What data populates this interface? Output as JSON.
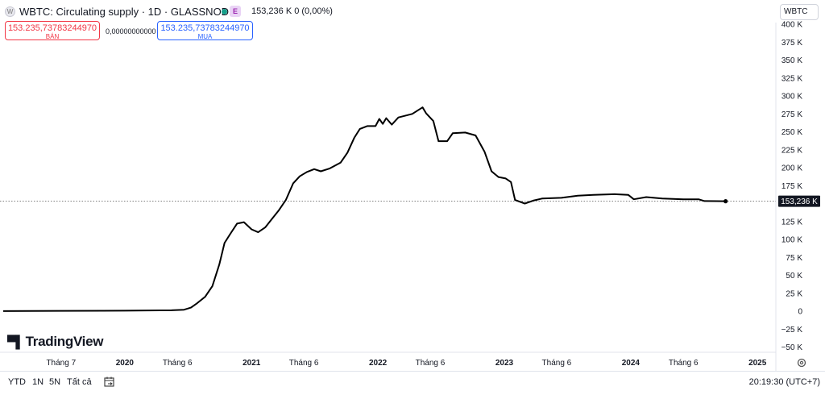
{
  "header": {
    "title": "WBTC: Circulating supply · 1D · GLASSNODE",
    "badge": "E",
    "last": "153,236 K  0 (0,00%)",
    "symbol_button": "WBTC"
  },
  "trade": {
    "sell_value": "153.235,73783244970",
    "sell_label": "BÁN",
    "spread": "0,00000000000",
    "buy_value": "153.235,73783244970",
    "buy_label": "MUA"
  },
  "logo": "TradingView",
  "colors": {
    "line": "#000000",
    "sell": "#f23645",
    "buy": "#2962ff",
    "badge": "#9c27b0",
    "live": "#17a08a"
  },
  "chart_data": {
    "type": "line",
    "title": "WBTC: Circulating supply",
    "ylabel": "",
    "ylim": [
      -50000,
      400000
    ],
    "grid": false,
    "last_label": "153,236 K",
    "last_value": 153236,
    "yticks": [
      {
        "v": 400000,
        "label": "400 K"
      },
      {
        "v": 375000,
        "label": "375 K"
      },
      {
        "v": 350000,
        "label": "350 K"
      },
      {
        "v": 325000,
        "label": "325 K"
      },
      {
        "v": 300000,
        "label": "300 K"
      },
      {
        "v": 275000,
        "label": "275 K"
      },
      {
        "v": 250000,
        "label": "250 K"
      },
      {
        "v": 225000,
        "label": "225 K"
      },
      {
        "v": 200000,
        "label": "200 K"
      },
      {
        "v": 175000,
        "label": "175 K"
      },
      {
        "v": 125000,
        "label": "125 K"
      },
      {
        "v": 100000,
        "label": "100 K"
      },
      {
        "v": 75000,
        "label": "75 K"
      },
      {
        "v": 50000,
        "label": "50 K"
      },
      {
        "v": 25000,
        "label": "25 K"
      },
      {
        "v": 0,
        "label": "0"
      },
      {
        "v": -25000,
        "label": "−25 K"
      },
      {
        "v": -50000,
        "label": "−50 K"
      }
    ],
    "xticks": [
      {
        "t": "2019-07-01",
        "label": "Tháng 7",
        "bold": false
      },
      {
        "t": "2020-01-01",
        "label": "2020",
        "bold": true
      },
      {
        "t": "2020-06-01",
        "label": "Tháng 6",
        "bold": false
      },
      {
        "t": "2021-01-01",
        "label": "2021",
        "bold": true
      },
      {
        "t": "2021-06-01",
        "label": "Tháng 6",
        "bold": false
      },
      {
        "t": "2022-01-01",
        "label": "2022",
        "bold": true
      },
      {
        "t": "2022-06-01",
        "label": "Tháng 6",
        "bold": false
      },
      {
        "t": "2023-01-01",
        "label": "2023",
        "bold": true
      },
      {
        "t": "2023-06-01",
        "label": "Tháng 6",
        "bold": false
      },
      {
        "t": "2024-01-01",
        "label": "2024",
        "bold": true
      },
      {
        "t": "2024-06-01",
        "label": "Tháng 6",
        "bold": false
      },
      {
        "t": "2025-01-01",
        "label": "2025",
        "bold": true
      }
    ],
    "series": [
      {
        "points": [
          [
            "2019-01-15",
            100
          ],
          [
            "2019-07-01",
            400
          ],
          [
            "2020-01-01",
            700
          ],
          [
            "2020-05-15",
            1200
          ],
          [
            "2020-06-20",
            2000
          ],
          [
            "2020-07-10",
            5000
          ],
          [
            "2020-07-25",
            10000
          ],
          [
            "2020-08-20",
            20000
          ],
          [
            "2020-09-10",
            35000
          ],
          [
            "2020-09-30",
            65000
          ],
          [
            "2020-10-15",
            95000
          ],
          [
            "2020-11-01",
            108000
          ],
          [
            "2020-11-20",
            122000
          ],
          [
            "2020-12-10",
            124000
          ],
          [
            "2021-01-01",
            114000
          ],
          [
            "2021-01-20",
            110000
          ],
          [
            "2021-02-10",
            117000
          ],
          [
            "2021-02-28",
            128000
          ],
          [
            "2021-03-20",
            140000
          ],
          [
            "2021-04-10",
            155000
          ],
          [
            "2021-05-01",
            178000
          ],
          [
            "2021-05-20",
            188000
          ],
          [
            "2021-06-10",
            194000
          ],
          [
            "2021-07-01",
            198000
          ],
          [
            "2021-07-20",
            195000
          ],
          [
            "2021-08-15",
            199000
          ],
          [
            "2021-09-15",
            207000
          ],
          [
            "2021-10-05",
            221000
          ],
          [
            "2021-10-25",
            242000
          ],
          [
            "2021-11-10",
            254000
          ],
          [
            "2021-12-01",
            258000
          ],
          [
            "2021-12-25",
            258000
          ],
          [
            "2022-01-05",
            268000
          ],
          [
            "2022-01-15",
            261000
          ],
          [
            "2022-01-25",
            269000
          ],
          [
            "2022-02-10",
            260000
          ],
          [
            "2022-03-01",
            270000
          ],
          [
            "2022-04-10",
            275000
          ],
          [
            "2022-05-10",
            284000
          ],
          [
            "2022-05-20",
            276000
          ],
          [
            "2022-06-10",
            265000
          ],
          [
            "2022-06-25",
            237000
          ],
          [
            "2022-07-20",
            237000
          ],
          [
            "2022-08-05",
            248000
          ],
          [
            "2022-09-10",
            249000
          ],
          [
            "2022-10-10",
            245000
          ],
          [
            "2022-11-05",
            222000
          ],
          [
            "2022-11-25",
            195000
          ],
          [
            "2022-12-15",
            187000
          ],
          [
            "2023-01-05",
            185000
          ],
          [
            "2023-01-20",
            180000
          ],
          [
            "2023-02-01",
            155000
          ],
          [
            "2023-03-01",
            150000
          ],
          [
            "2023-03-25",
            154000
          ],
          [
            "2023-04-20",
            157000
          ],
          [
            "2023-06-15",
            158000
          ],
          [
            "2023-08-01",
            161000
          ],
          [
            "2023-09-15",
            162000
          ],
          [
            "2023-11-15",
            163000
          ],
          [
            "2023-12-25",
            162000
          ],
          [
            "2024-01-10",
            156000
          ],
          [
            "2024-02-15",
            159000
          ],
          [
            "2024-04-01",
            157000
          ],
          [
            "2024-06-01",
            156000
          ],
          [
            "2024-07-15",
            156000
          ],
          [
            "2024-08-01",
            153500
          ],
          [
            "2024-10-01",
            153236
          ]
        ]
      }
    ]
  },
  "footer": {
    "ranges": [
      "YTD",
      "1N",
      "5N",
      "Tất cả"
    ],
    "clock": "20:19:30 (UTC+7)"
  }
}
